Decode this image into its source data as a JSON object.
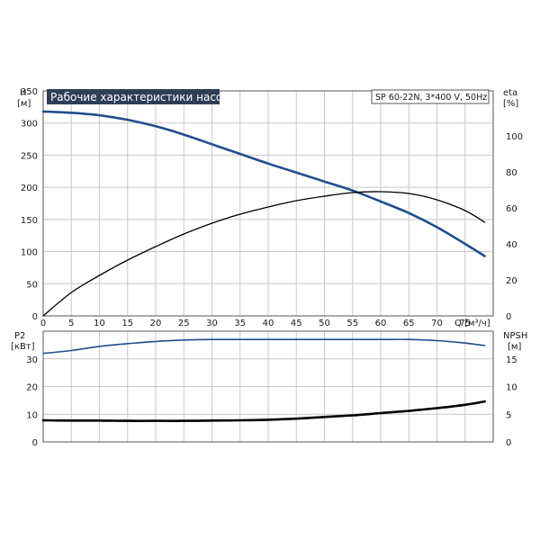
{
  "chart_data": [
    {
      "type": "line",
      "title": "Рабочие характеристики насоса",
      "subtitle": "SP 60-22N, 3*400 V, 50Hz",
      "xlabel": "Q [м³/ч]",
      "ylabel": "H",
      "ylabel_unit": "[м]",
      "y2label": "eta",
      "y2label_unit": "[%]",
      "xlim": [
        0,
        80
      ],
      "ylim": [
        0,
        350
      ],
      "y2lim": [
        0,
        125
      ],
      "x_ticks": [
        0,
        5,
        10,
        15,
        20,
        25,
        30,
        35,
        40,
        45,
        50,
        55,
        60,
        65,
        70,
        75
      ],
      "y_ticks": [
        0,
        50,
        100,
        150,
        200,
        250,
        300,
        350
      ],
      "y2_ticks": [
        0,
        20,
        40,
        60,
        80,
        100
      ],
      "grid": true,
      "series": [
        {
          "key": "H",
          "axis": "left",
          "color": "#1f4e8c",
          "x": [
            0,
            5,
            10,
            15,
            20,
            25,
            30,
            35,
            40,
            45,
            50,
            55,
            60,
            65,
            70,
            75,
            78.5
          ],
          "y": [
            318,
            316,
            312,
            305,
            295,
            282,
            267,
            252,
            237,
            223,
            209,
            195,
            178,
            160,
            138,
            112,
            93
          ]
        },
        {
          "key": "eta",
          "axis": "right",
          "color": "#000000",
          "x": [
            0,
            5,
            10,
            15,
            20,
            25,
            30,
            35,
            40,
            45,
            50,
            55,
            60,
            65,
            70,
            75,
            78.5
          ],
          "y": [
            0,
            13,
            22.5,
            31,
            38.5,
            45.5,
            51.5,
            56.5,
            60.5,
            64,
            66.5,
            68.5,
            69,
            68,
            64.5,
            58.5,
            52
          ]
        }
      ]
    },
    {
      "type": "line",
      "ylabel": "P2",
      "ylabel_unit": "[кВт]",
      "y2label": "NPSH",
      "y2label_unit": "[м]",
      "xlim": [
        0,
        80
      ],
      "ylim": [
        0,
        40
      ],
      "y2lim": [
        0,
        20
      ],
      "y_ticks": [
        0,
        10,
        20,
        30
      ],
      "y2_ticks": [
        0,
        5,
        10,
        15
      ],
      "grid": true,
      "series": [
        {
          "key": "P2",
          "axis": "left",
          "color": "#1f4e8c",
          "x": [
            0,
            5,
            10,
            15,
            20,
            25,
            30,
            35,
            40,
            45,
            50,
            55,
            60,
            65,
            70,
            75,
            78.5
          ],
          "y": [
            32,
            33,
            34.5,
            35.5,
            36.3,
            36.8,
            37,
            37,
            37,
            37,
            37,
            37,
            37,
            37,
            36.6,
            35.7,
            34.8
          ]
        },
        {
          "key": "NPSH",
          "axis": "right",
          "color": "#000000",
          "x": [
            0,
            5,
            10,
            15,
            20,
            25,
            30,
            35,
            40,
            45,
            50,
            55,
            60,
            65,
            70,
            75,
            78.5
          ],
          "y": [
            3.9,
            3.85,
            3.85,
            3.8,
            3.8,
            3.8,
            3.85,
            3.9,
            4.0,
            4.2,
            4.5,
            4.8,
            5.2,
            5.6,
            6.1,
            6.7,
            7.3
          ]
        }
      ]
    }
  ]
}
